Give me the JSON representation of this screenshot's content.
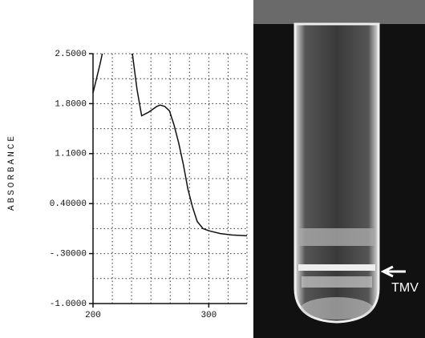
{
  "chart_data": {
    "type": "line",
    "y_label": "ABSORBANCE",
    "x": [
      200,
      203,
      206,
      208,
      220,
      234,
      238,
      242,
      248,
      255,
      258,
      262,
      266,
      270,
      274,
      278,
      282,
      286,
      290,
      295,
      300,
      310,
      320,
      333
    ],
    "series": [
      {
        "color": "#111111",
        "values": [
          1.95,
          2.15,
          2.35,
          2.5,
          null,
          2.5,
          2.0,
          1.63,
          1.68,
          1.76,
          1.78,
          1.76,
          1.7,
          1.5,
          1.25,
          0.95,
          0.6,
          0.35,
          0.15,
          0.05,
          0.02,
          -0.02,
          -0.04,
          -0.05
        ]
      }
    ],
    "xlim": [
      200,
      333
    ],
    "ylim": [
      -1.0,
      2.5
    ],
    "xticks": [
      200,
      300
    ],
    "yticks": [
      {
        "value": 2.5,
        "label": "2.5000"
      },
      {
        "value": 1.8,
        "label": "1.8000"
      },
      {
        "value": 1.1,
        "label": "1.1000"
      },
      {
        "value": 0.4,
        "label": "0.40000"
      },
      {
        "value": -0.3,
        "label": "-.30000"
      },
      {
        "value": -1.0,
        "label": "-1.0000"
      }
    ],
    "x_minor_grid": [
      216.7,
      233.3,
      250,
      266.7,
      283.3,
      316.7,
      333
    ],
    "y_minor_grid": [
      2.15,
      1.45,
      0.75,
      0.05,
      -0.65
    ],
    "grid": true
  },
  "photo": {
    "label": "TMV"
  }
}
